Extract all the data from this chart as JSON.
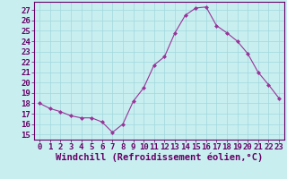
{
  "x": [
    0,
    1,
    2,
    3,
    4,
    5,
    6,
    7,
    8,
    9,
    10,
    11,
    12,
    13,
    14,
    15,
    16,
    17,
    18,
    19,
    20,
    21,
    22,
    23
  ],
  "y": [
    18.0,
    17.5,
    17.2,
    16.8,
    16.6,
    16.6,
    16.2,
    15.2,
    16.0,
    18.2,
    19.5,
    21.7,
    22.5,
    24.8,
    26.5,
    27.2,
    27.3,
    25.5,
    24.8,
    24.0,
    22.8,
    21.0,
    19.8,
    18.5
  ],
  "line_color": "#993399",
  "marker": "D",
  "marker_size": 2.0,
  "bg_color": "#c8eef0",
  "grid_color": "#a0d8dc",
  "xlabel": "Windchill (Refroidissement éolien,°C)",
  "ylim": [
    14.5,
    27.8
  ],
  "xlim": [
    -0.5,
    23.5
  ],
  "yticks": [
    15,
    16,
    17,
    18,
    19,
    20,
    21,
    22,
    23,
    24,
    25,
    26,
    27
  ],
  "xticks": [
    0,
    1,
    2,
    3,
    4,
    5,
    6,
    7,
    8,
    9,
    10,
    11,
    12,
    13,
    14,
    15,
    16,
    17,
    18,
    19,
    20,
    21,
    22,
    23
  ],
  "tick_fontsize": 6.5,
  "xlabel_fontsize": 7.5,
  "line_color_hex": "#993399",
  "axis_color": "#660066",
  "tick_color": "#660066",
  "spine_color": "#660066"
}
